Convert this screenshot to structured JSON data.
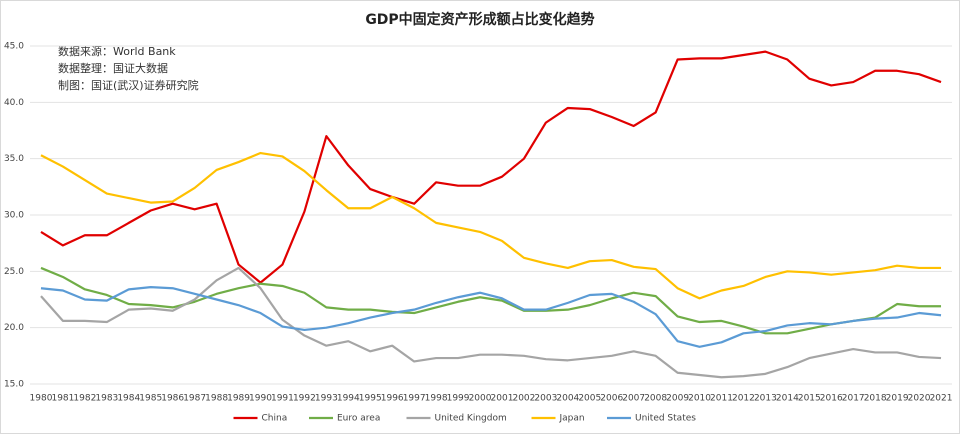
{
  "chart_data": {
    "type": "line",
    "title": "GDP中固定资产形成额占比变化趋势",
    "annotations": [
      "数据来源：World Bank",
      "数据整理：国证大数据",
      "制图：国证(武汉)证券研究院"
    ],
    "categories": [
      "1980",
      "1981",
      "1982",
      "1983",
      "1984",
      "1985",
      "1986",
      "1987",
      "1988",
      "1989",
      "1990",
      "1991",
      "1992",
      "1993",
      "1994",
      "1995",
      "1996",
      "1997",
      "1998",
      "1999",
      "2000",
      "2001",
      "2002",
      "2003",
      "2004",
      "2005",
      "2006",
      "2007",
      "2008",
      "2009",
      "2010",
      "2011",
      "2012",
      "2013",
      "2014",
      "2015",
      "2016",
      "2017",
      "2018",
      "2019",
      "2020",
      "2021"
    ],
    "series": [
      {
        "name": "China",
        "color": "#e00000",
        "values": [
          28.5,
          27.3,
          28.2,
          28.2,
          29.3,
          30.4,
          31.0,
          30.5,
          31.0,
          25.6,
          24.0,
          25.6,
          30.3,
          37.0,
          34.4,
          32.3,
          31.6,
          31.0,
          32.9,
          32.6,
          32.6,
          33.4,
          35.0,
          38.2,
          39.5,
          39.4,
          38.7,
          37.9,
          39.1,
          43.8,
          43.9,
          43.9,
          44.2,
          44.5,
          43.8,
          42.1,
          41.5,
          41.8,
          42.8,
          42.8,
          42.5,
          41.8
        ]
      },
      {
        "name": "Euro area",
        "color": "#70ad47",
        "values": [
          25.3,
          24.5,
          23.4,
          22.9,
          22.1,
          22.0,
          21.8,
          22.3,
          23.0,
          23.5,
          23.9,
          23.7,
          23.1,
          21.8,
          21.6,
          21.6,
          21.4,
          21.3,
          21.8,
          22.3,
          22.7,
          22.4,
          21.5,
          21.5,
          21.6,
          22.0,
          22.6,
          23.1,
          22.8,
          21.0,
          20.5,
          20.6,
          20.1,
          19.5,
          19.5,
          19.9,
          20.3,
          20.6,
          20.9,
          22.1,
          21.9,
          21.9
        ]
      },
      {
        "name": "United Kingdom",
        "color": "#a5a5a5",
        "values": [
          22.8,
          20.6,
          20.6,
          20.5,
          21.6,
          21.7,
          21.5,
          22.5,
          24.2,
          25.3,
          23.5,
          20.7,
          19.3,
          18.4,
          18.8,
          17.9,
          18.4,
          17.0,
          17.3,
          17.3,
          17.6,
          17.6,
          17.5,
          17.2,
          17.1,
          17.3,
          17.5,
          17.9,
          17.5,
          16.0,
          15.8,
          15.6,
          15.7,
          15.9,
          16.5,
          17.3,
          17.7,
          18.1,
          17.8,
          17.8,
          17.4,
          17.3
        ]
      },
      {
        "name": "Japan",
        "color": "#ffc000",
        "values": [
          35.3,
          34.3,
          33.1,
          31.9,
          31.5,
          31.1,
          31.2,
          32.4,
          34.0,
          34.7,
          35.5,
          35.2,
          33.9,
          32.2,
          30.6,
          30.6,
          31.6,
          30.6,
          29.3,
          28.9,
          28.5,
          27.7,
          26.2,
          25.7,
          25.3,
          25.9,
          26.0,
          25.4,
          25.2,
          23.5,
          22.6,
          23.3,
          23.7,
          24.5,
          25.0,
          24.9,
          24.7,
          24.9,
          25.1,
          25.5,
          25.3,
          25.3
        ]
      },
      {
        "name": "United States",
        "color": "#5b9bd5",
        "values": [
          23.5,
          23.3,
          22.5,
          22.4,
          23.4,
          23.6,
          23.5,
          23.0,
          22.5,
          22.0,
          21.3,
          20.1,
          19.8,
          20.0,
          20.4,
          20.9,
          21.3,
          21.6,
          22.2,
          22.7,
          23.1,
          22.6,
          21.6,
          21.6,
          22.2,
          22.9,
          23.0,
          22.3,
          21.2,
          18.8,
          18.3,
          18.7,
          19.5,
          19.7,
          20.2,
          20.4,
          20.3,
          20.6,
          20.8,
          20.9,
          21.3,
          21.1
        ]
      }
    ],
    "ylim": [
      15,
      45
    ],
    "yticks": [
      {
        "value": 15,
        "label": "15.0"
      },
      {
        "value": 20,
        "label": "20.0"
      },
      {
        "value": 25,
        "label": "25.0"
      },
      {
        "value": 30,
        "label": "30.0"
      },
      {
        "value": 35,
        "label": "35.0"
      },
      {
        "value": 40,
        "label": "40.0"
      },
      {
        "value": 45,
        "label": "45.0"
      }
    ],
    "grid": true
  }
}
